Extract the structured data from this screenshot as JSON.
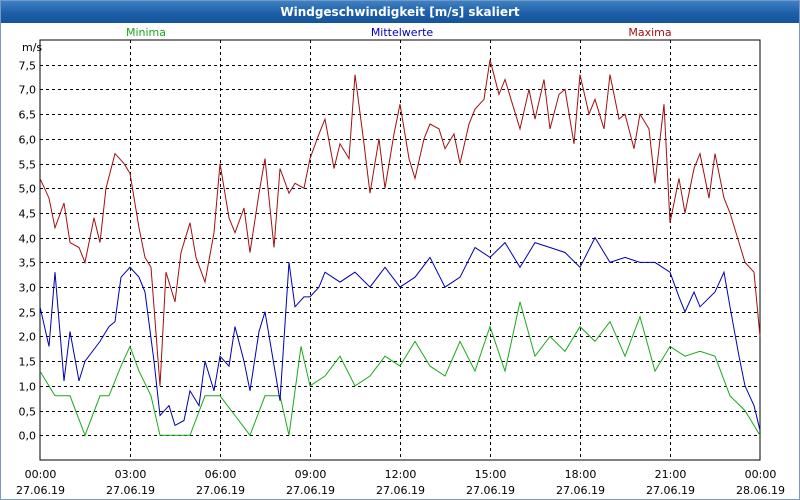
{
  "window": {
    "title": "Windgeschwindigkeit [m/s] skaliert"
  },
  "colors": {
    "minima": "#1ca81c",
    "mittel": "#0000b4",
    "maxima": "#a01010",
    "grid": "#000000"
  },
  "chart_data": {
    "type": "line",
    "title": "Windgeschwindigkeit [m/s] skaliert",
    "ylabel": "m/s",
    "xlabel": "",
    "ylim": [
      -0.5,
      8.0
    ],
    "xlim": [
      0,
      24
    ],
    "yticks": [
      "0,0",
      "0,5",
      "1,0",
      "1,5",
      "2,0",
      "2,5",
      "3,0",
      "3,5",
      "4,0",
      "4,5",
      "5,0",
      "5,5",
      "6,0",
      "6,5",
      "7,0",
      "7,5"
    ],
    "xticks": [
      {
        "time": "00:00",
        "date": "27.06.19"
      },
      {
        "time": "03:00",
        "date": "27.06.19"
      },
      {
        "time": "06:00",
        "date": "27.06.19"
      },
      {
        "time": "09:00",
        "date": "27.06.19"
      },
      {
        "time": "12:00",
        "date": "27.06.19"
      },
      {
        "time": "15:00",
        "date": "27.06.19"
      },
      {
        "time": "18:00",
        "date": "27.06.19"
      },
      {
        "time": "21:00",
        "date": "27.06.19"
      },
      {
        "time": "00:00",
        "date": "28.06.19"
      }
    ],
    "series": [
      {
        "name": "Minima",
        "x_hours": [
          0,
          0.5,
          1,
          1.5,
          2,
          2.3,
          2.7,
          3,
          3.3,
          3.7,
          4,
          4.5,
          5,
          5.5,
          6,
          6.5,
          7,
          7.5,
          8,
          8.3,
          8.7,
          9,
          9.5,
          10,
          10.5,
          11,
          11.5,
          12,
          12.5,
          13,
          13.5,
          14,
          14.5,
          15,
          15.5,
          16,
          16.5,
          17,
          17.5,
          18,
          18.5,
          19,
          19.5,
          20,
          20.5,
          21,
          21.5,
          22,
          22.5,
          23,
          23.5,
          24
        ],
        "values": [
          1.3,
          0.8,
          0.8,
          0.0,
          0.8,
          0.8,
          1.4,
          1.8,
          1.3,
          0.8,
          0.0,
          0.0,
          0.0,
          0.8,
          0.8,
          0.4,
          0.0,
          0.8,
          0.8,
          0.0,
          1.8,
          1.0,
          1.2,
          1.6,
          1.0,
          1.2,
          1.6,
          1.4,
          1.9,
          1.4,
          1.2,
          1.9,
          1.3,
          2.2,
          1.3,
          2.7,
          1.6,
          2.0,
          1.7,
          2.2,
          1.9,
          2.3,
          1.6,
          2.4,
          1.3,
          1.8,
          1.6,
          1.7,
          1.6,
          0.8,
          0.5,
          0.0
        ]
      },
      {
        "name": "Mittelwerte",
        "x_hours": [
          0,
          0.3,
          0.5,
          0.8,
          1,
          1.3,
          1.5,
          2,
          2.3,
          2.5,
          2.7,
          3,
          3.3,
          3.5,
          3.8,
          4,
          4.3,
          4.5,
          4.8,
          5,
          5.3,
          5.5,
          5.8,
          6,
          6.3,
          6.5,
          6.8,
          7,
          7.3,
          7.5,
          8,
          8.3,
          8.5,
          8.8,
          9,
          9.3,
          9.5,
          10,
          10.5,
          11,
          11.5,
          12,
          12.5,
          13,
          13.5,
          14,
          14.5,
          15,
          15.5,
          16,
          16.5,
          17,
          17.5,
          18,
          18.5,
          19,
          19.5,
          20,
          20.5,
          21,
          21.3,
          21.5,
          21.8,
          22,
          22.5,
          22.8,
          23,
          23.3,
          23.5,
          23.8,
          24
        ],
        "values": [
          2.6,
          1.8,
          3.3,
          1.1,
          2.1,
          1.1,
          1.5,
          1.9,
          2.2,
          2.3,
          3.2,
          3.4,
          3.2,
          2.9,
          1.5,
          0.4,
          0.6,
          0.2,
          0.3,
          0.9,
          0.6,
          1.5,
          0.9,
          1.6,
          1.4,
          2.2,
          1.5,
          0.9,
          2.1,
          2.5,
          0.7,
          3.5,
          2.6,
          2.8,
          2.8,
          3.0,
          3.3,
          3.1,
          3.3,
          3.0,
          3.4,
          3.0,
          3.2,
          3.6,
          3.0,
          3.2,
          3.8,
          3.6,
          3.9,
          3.4,
          3.9,
          3.8,
          3.7,
          3.4,
          4.0,
          3.5,
          3.6,
          3.5,
          3.5,
          3.3,
          2.8,
          2.5,
          2.9,
          2.6,
          2.9,
          3.3,
          2.6,
          1.6,
          1.0,
          0.6,
          0.1
        ]
      },
      {
        "name": "Maxima",
        "x_hours": [
          0,
          0.3,
          0.5,
          0.8,
          1,
          1.3,
          1.5,
          1.8,
          2,
          2.2,
          2.5,
          2.8,
          3,
          3.3,
          3.5,
          3.7,
          4,
          4.2,
          4.5,
          4.7,
          5,
          5.2,
          5.5,
          5.8,
          6,
          6.3,
          6.5,
          6.8,
          7,
          7.3,
          7.5,
          7.8,
          8,
          8.3,
          8.5,
          8.8,
          9,
          9.3,
          9.5,
          9.8,
          10,
          10.3,
          10.5,
          10.8,
          11,
          11.3,
          11.5,
          11.8,
          12,
          12.3,
          12.5,
          12.8,
          13,
          13.3,
          13.5,
          13.8,
          14,
          14.3,
          14.5,
          14.8,
          15,
          15.3,
          15.5,
          15.8,
          16,
          16.3,
          16.5,
          16.8,
          17,
          17.3,
          17.5,
          17.8,
          18,
          18.3,
          18.5,
          18.8,
          19,
          19.3,
          19.5,
          19.8,
          20,
          20.3,
          20.5,
          20.8,
          21,
          21.3,
          21.5,
          21.8,
          22,
          22.3,
          22.5,
          22.8,
          23,
          23.3,
          23.5,
          23.8,
          24
        ],
        "values": [
          5.2,
          4.8,
          4.2,
          4.7,
          3.9,
          3.8,
          3.5,
          4.4,
          3.9,
          5.0,
          5.7,
          5.5,
          5.3,
          4.2,
          3.6,
          3.4,
          1.0,
          3.3,
          2.7,
          3.7,
          4.3,
          3.6,
          3.1,
          4.1,
          5.5,
          4.4,
          4.1,
          4.6,
          3.7,
          4.9,
          5.6,
          3.8,
          5.4,
          4.9,
          5.1,
          5.0,
          5.6,
          6.1,
          6.4,
          5.4,
          5.9,
          5.6,
          7.3,
          5.9,
          4.9,
          6.0,
          5.0,
          6.1,
          6.7,
          5.6,
          5.2,
          6.0,
          6.3,
          6.2,
          5.8,
          6.1,
          5.5,
          6.3,
          6.6,
          6.8,
          7.6,
          6.9,
          7.2,
          6.6,
          6.2,
          7.0,
          6.4,
          7.2,
          6.2,
          6.9,
          7.0,
          5.9,
          7.3,
          6.5,
          6.8,
          6.2,
          7.3,
          6.4,
          6.5,
          5.8,
          6.5,
          6.2,
          5.1,
          6.7,
          4.3,
          5.2,
          4.5,
          5.4,
          5.7,
          4.8,
          5.7,
          4.8,
          4.5,
          3.9,
          3.5,
          3.3,
          2.0
        ]
      }
    ]
  }
}
